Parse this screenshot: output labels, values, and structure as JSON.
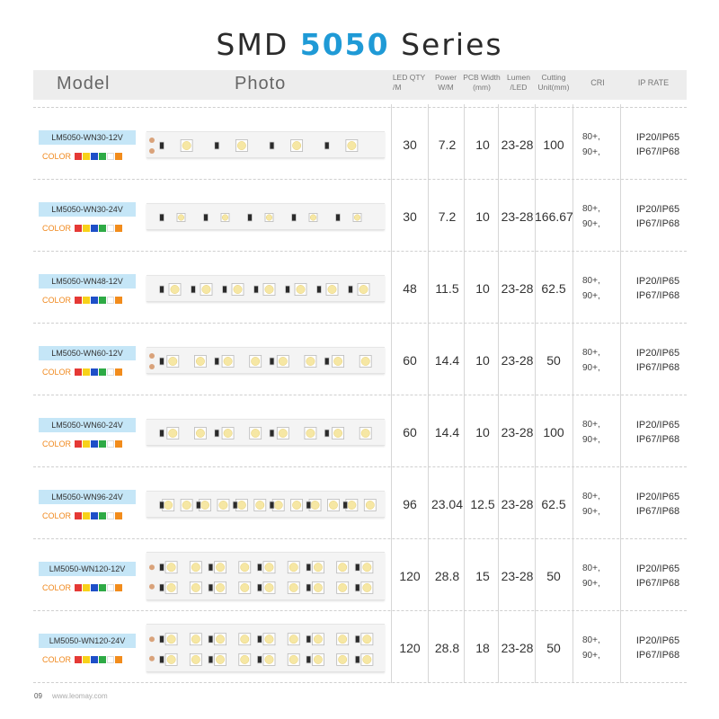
{
  "title": {
    "prefix": "SMD",
    "highlight": "5050",
    "suffix": "Series"
  },
  "headers": {
    "model": "Model",
    "photo": "Photo",
    "qty_line1": "LED  QTY",
    "qty_line2": "/M",
    "power_line1": "Power",
    "power_line2": "W/M",
    "pcb_line1": "PCB Width",
    "pcb_line2": "(mm)",
    "lumen_line1": "Lumen",
    "lumen_line2": "/LED",
    "cut_line1": "Cutting",
    "cut_line2": "Unit(mm)",
    "cri": "CRI",
    "ip": "IP RATE"
  },
  "color_label": "COLOR",
  "swatch_colors": [
    "#e53935",
    "#f7d21a",
    "#1e4fc8",
    "#2eaa45",
    "#ffffff",
    "#f28c1c"
  ],
  "rows": [
    {
      "model": "LM5050-WN30-12V",
      "qty": "30",
      "power": "7.2",
      "pcb": "10",
      "lumen": "23-28",
      "cut": "100",
      "cri1": "80+,",
      "cri2": "90+,",
      "ip1": "IP20/IP65",
      "ip2": "IP67/IP68"
    },
    {
      "model": "LM5050-WN30-24V",
      "qty": "30",
      "power": "7.2",
      "pcb": "10",
      "lumen": "23-28",
      "cut": "166.67",
      "cri1": "80+,",
      "cri2": "90+,",
      "ip1": "IP20/IP65",
      "ip2": "IP67/IP68"
    },
    {
      "model": "LM5050-WN48-12V",
      "qty": "48",
      "power": "11.5",
      "pcb": "10",
      "lumen": "23-28",
      "cut": "62.5",
      "cri1": "80+,",
      "cri2": "90+,",
      "ip1": "IP20/IP65",
      "ip2": "IP67/IP68"
    },
    {
      "model": "LM5050-WN60-12V",
      "qty": "60",
      "power": "14.4",
      "pcb": "10",
      "lumen": "23-28",
      "cut": "50",
      "cri1": "80+,",
      "cri2": "90+,",
      "ip1": "IP20/IP65",
      "ip2": "IP67/IP68"
    },
    {
      "model": "LM5050-WN60-24V",
      "qty": "60",
      "power": "14.4",
      "pcb": "10",
      "lumen": "23-28",
      "cut": "100",
      "cri1": "80+,",
      "cri2": "90+,",
      "ip1": "IP20/IP65",
      "ip2": "IP67/IP68"
    },
    {
      "model": "LM5050-WN96-24V",
      "qty": "96",
      "power": "23.04",
      "pcb": "12.5",
      "lumen": "23-28",
      "cut": "62.5",
      "cri1": "80+,",
      "cri2": "90+,",
      "ip1": "IP20/IP65",
      "ip2": "IP67/IP68"
    },
    {
      "model": "LM5050-WN120-12V",
      "qty": "120",
      "power": "28.8",
      "pcb": "15",
      "lumen": "23-28",
      "cut": "50",
      "cri1": "80+,",
      "cri2": "90+,",
      "ip1": "IP20/IP65",
      "ip2": "IP67/IP68"
    },
    {
      "model": "LM5050-WN120-24V",
      "qty": "120",
      "power": "28.8",
      "pcb": "18",
      "lumen": "23-28",
      "cut": "50",
      "cri1": "80+,",
      "cri2": "90+,",
      "ip1": "IP20/IP65",
      "ip2": "IP67/IP68"
    }
  ],
  "footer": {
    "page": "09",
    "site": "www.leomay.com"
  }
}
